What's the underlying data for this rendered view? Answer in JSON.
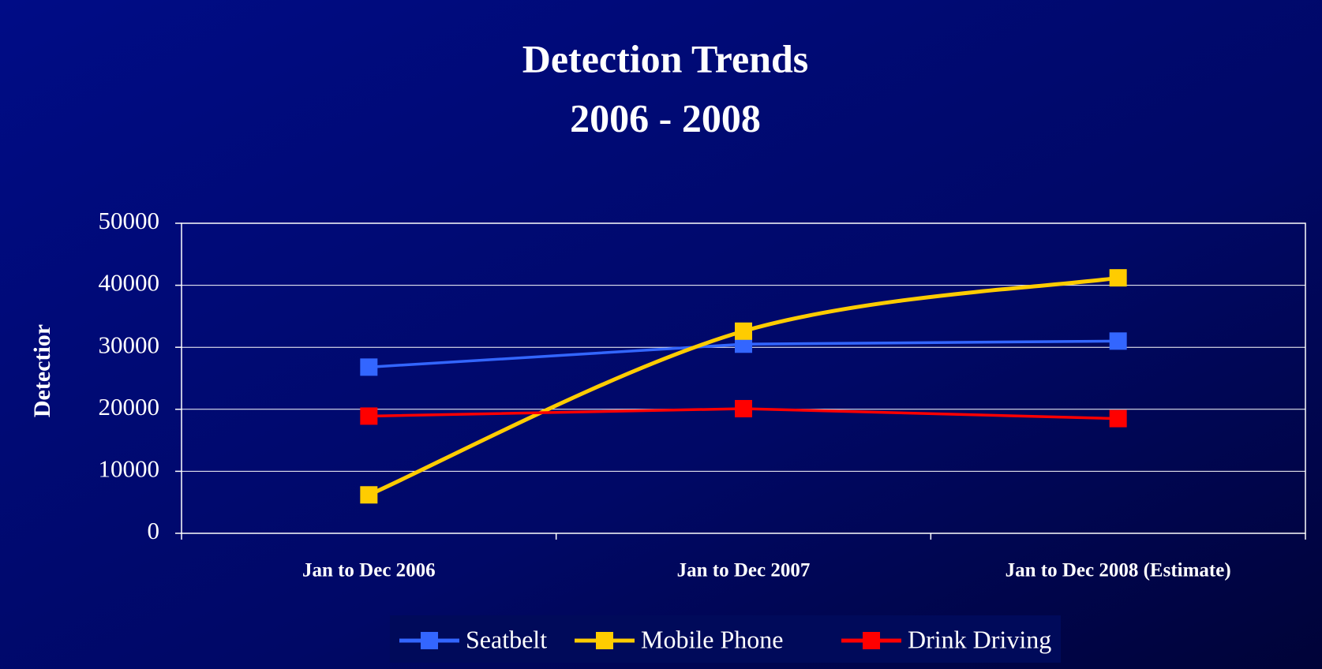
{
  "chart_data": {
    "type": "line",
    "title": "Detection Trends",
    "subtitle": "2006 - 2008",
    "y_label": "Detectior",
    "categories": [
      "Jan to Dec 2006",
      "Jan to Dec 2007",
      "Jan to Dec 2008 (Estimate)"
    ],
    "series": [
      {
        "name": "Seatbelt",
        "color": "#3366ff",
        "smooth": false,
        "values": [
          26800,
          30500,
          31000
        ]
      },
      {
        "name": "Mobile Phone",
        "color": "#ffcc00",
        "smooth": true,
        "values": [
          6200,
          32600,
          41200
        ]
      },
      {
        "name": "Drink Driving",
        "color": "#ff0000",
        "smooth": false,
        "values": [
          18900,
          20100,
          18500
        ]
      }
    ],
    "ylim": [
      0,
      50000
    ],
    "yticks": [
      0,
      10000,
      20000,
      30000,
      40000,
      50000
    ],
    "grid": true,
    "legend": "bottom"
  }
}
